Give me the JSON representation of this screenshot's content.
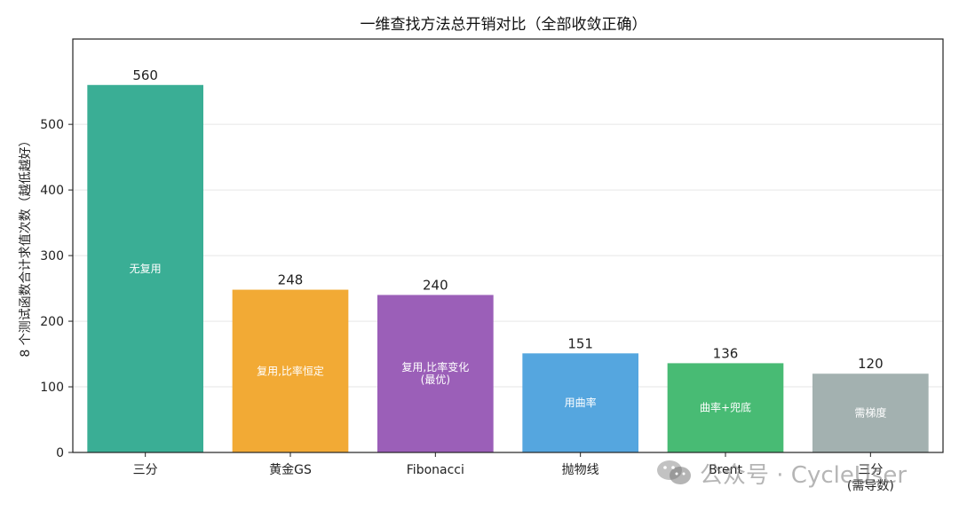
{
  "chart_data": {
    "type": "bar",
    "title": "一维查找方法总开销对比（全部收敛正确）",
    "ylabel": "8 个测试函数合计求值次数（越低越好）",
    "xlabel": "",
    "ylim": [
      0,
      630
    ],
    "yticks": [
      0,
      100,
      200,
      300,
      400,
      500
    ],
    "grid": true,
    "categories": [
      [
        "三分"
      ],
      [
        "黄金GS"
      ],
      [
        "Fibonacci"
      ],
      [
        "抛物线"
      ],
      [
        "Brent"
      ],
      [
        "三分",
        "(需导数)"
      ]
    ],
    "values": [
      560,
      248,
      240,
      151,
      136,
      120
    ],
    "inner_labels": [
      [
        "无复用"
      ],
      [
        "复用,比率恒定"
      ],
      [
        "复用,比率变化",
        "(最优)"
      ],
      [
        "用曲率"
      ],
      [
        "曲率+兜底"
      ],
      [
        "需梯度"
      ]
    ],
    "colors": [
      "#3aae95",
      "#f2aa35",
      "#9b5fb8",
      "#55a6df",
      "#48bb74",
      "#a3b1b0"
    ]
  },
  "watermark": {
    "icon": "wechat-icon",
    "text": "公众号 · CycleUser"
  }
}
